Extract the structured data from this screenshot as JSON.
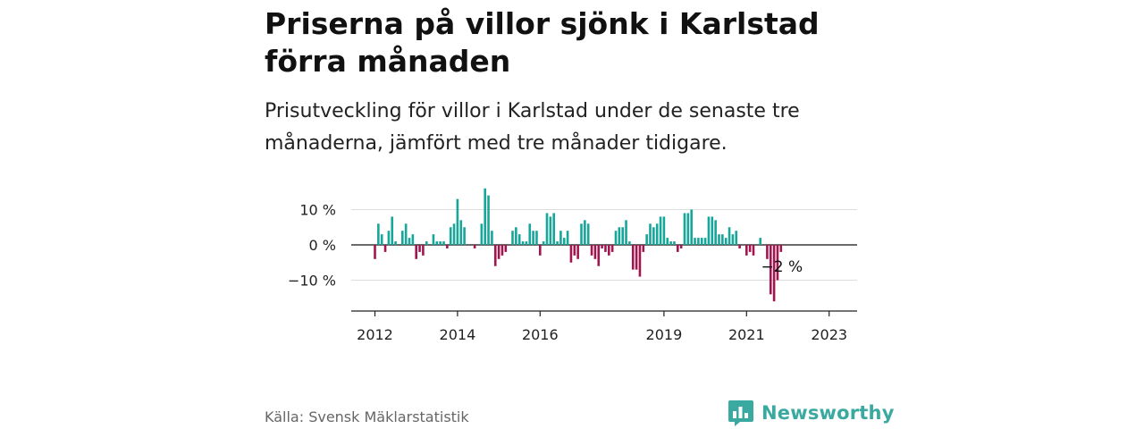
{
  "title": "Priserna på villor sjönk i Karlstad förra månaden",
  "subtitle": "Prisutveckling för villor i Karlstad under de senaste tre månaderna, jämfört med tre månader tidigare.",
  "source": "Källa: Svensk Mäklarstatistik",
  "brand": {
    "name": "Newsworthy",
    "icon": "newsworthy-logo-icon",
    "color": "#3aa99f"
  },
  "colors": {
    "positive": "#17a69a",
    "negative": "#a3154f",
    "grid": "#dddddd",
    "axis": "#222222"
  },
  "chart_data": {
    "type": "bar",
    "title": "",
    "xlabel": "",
    "ylabel": "",
    "x_start": "2012-01",
    "x_ticks": [
      "2012",
      "2014",
      "2016",
      "2019",
      "2021",
      "2023"
    ],
    "y_ticks": [
      {
        "value": 10,
        "label": "10 %"
      },
      {
        "value": 0,
        "label": "0 %"
      },
      {
        "value": -10,
        "label": "−10 %"
      }
    ],
    "ylim": [
      -17,
      17
    ],
    "grid": true,
    "annotation": {
      "label": "−2 %",
      "value": -2
    },
    "values": [
      -4,
      6,
      3,
      -2,
      4,
      8,
      1,
      0,
      4,
      6,
      2,
      3,
      -4,
      -2,
      -3,
      1,
      0,
      3,
      1,
      1,
      1,
      -1,
      5,
      6,
      13,
      7,
      5,
      0,
      0,
      -1,
      0,
      6,
      16,
      14,
      4,
      -6,
      -4,
      -3,
      -2,
      0,
      4,
      5,
      3,
      1,
      1,
      6,
      4,
      4,
      -3,
      1,
      9,
      8,
      9,
      1,
      4,
      2,
      4,
      -5,
      -3,
      -4,
      6,
      7,
      6,
      -3,
      -4,
      -6,
      -1,
      -2,
      -3,
      -2,
      4,
      5,
      5,
      7,
      1,
      -7,
      -7,
      -9,
      -2,
      3,
      6,
      5,
      6,
      8,
      8,
      2,
      1,
      1,
      -2,
      -1,
      9,
      9,
      10,
      2,
      2,
      2,
      2,
      8,
      8,
      7,
      3,
      3,
      2,
      5,
      3,
      4,
      -1,
      0,
      -3,
      -2,
      -3,
      0,
      2,
      0,
      -4,
      -14,
      -16,
      -10,
      -2
    ]
  }
}
